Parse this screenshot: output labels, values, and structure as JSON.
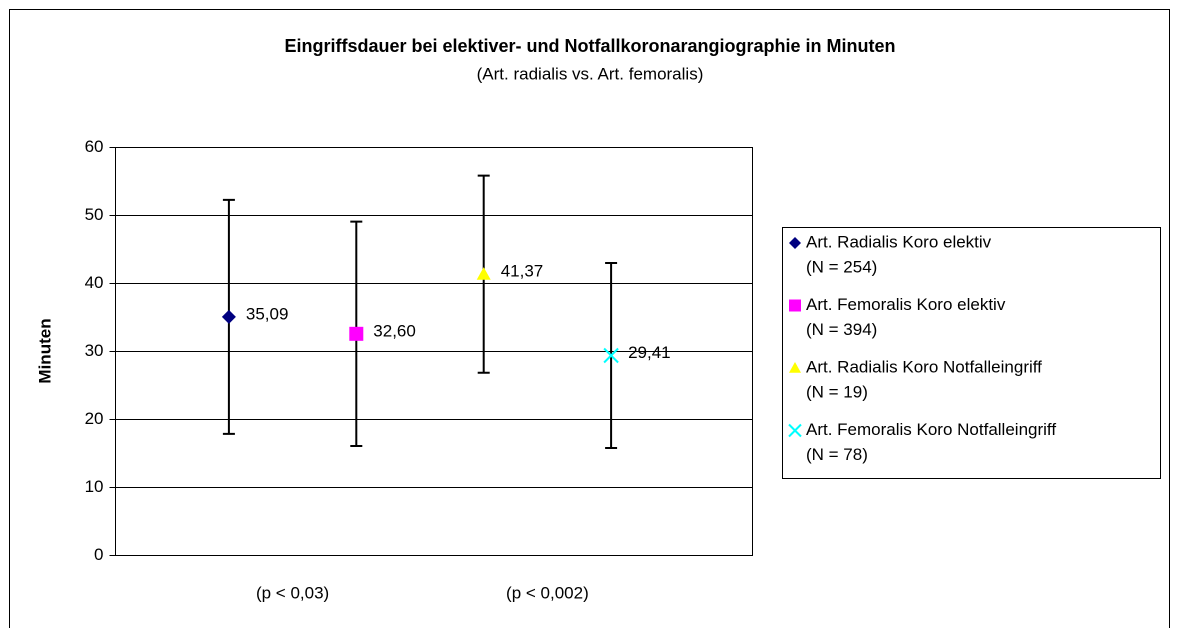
{
  "chart_data": {
    "type": "errorbar",
    "title": "Eingriffsdauer bei elektiver- und Notfallkoronarangiographie in Minuten",
    "subtitle": "(Art. radialis vs. Art. femoralis)",
    "y_label": "Minuten",
    "ylim": [
      0,
      60
    ],
    "yticks": [
      0,
      10,
      20,
      30,
      40,
      50,
      60
    ],
    "grid": true,
    "legend": "right",
    "series": [
      {
        "name": "Art. Radialis Koro elektiv",
        "count_label": "(N = 254)",
        "color": "#000080",
        "marker": "diamond",
        "values": [
          35.09
        ],
        "value_labels": [
          "35,09"
        ],
        "errors": [
          17.2
        ]
      },
      {
        "name": "Art. Femoralis Koro elektiv",
        "count_label": "(N = 394)",
        "color": "#ff00ff",
        "marker": "square",
        "values": [
          32.6
        ],
        "value_labels": [
          "32,60"
        ],
        "errors": [
          16.5
        ]
      },
      {
        "name": "Art. Radialis Koro Notfalleingriff",
        "count_label": "(N = 19)",
        "color": "#ffff00",
        "marker": "triangle",
        "values": [
          41.37
        ],
        "value_labels": [
          "41,37"
        ],
        "errors": [
          14.5
        ]
      },
      {
        "name": "Art. Femoralis Koro Notfalleingriff",
        "count_label": "(N = 78)",
        "color": "#00ffff",
        "marker": "x",
        "values": [
          29.41
        ],
        "value_labels": [
          "29,41"
        ],
        "errors": [
          13.6
        ]
      }
    ],
    "annotations": [
      "(p < 0,03)",
      "(p < 0,002)"
    ]
  }
}
